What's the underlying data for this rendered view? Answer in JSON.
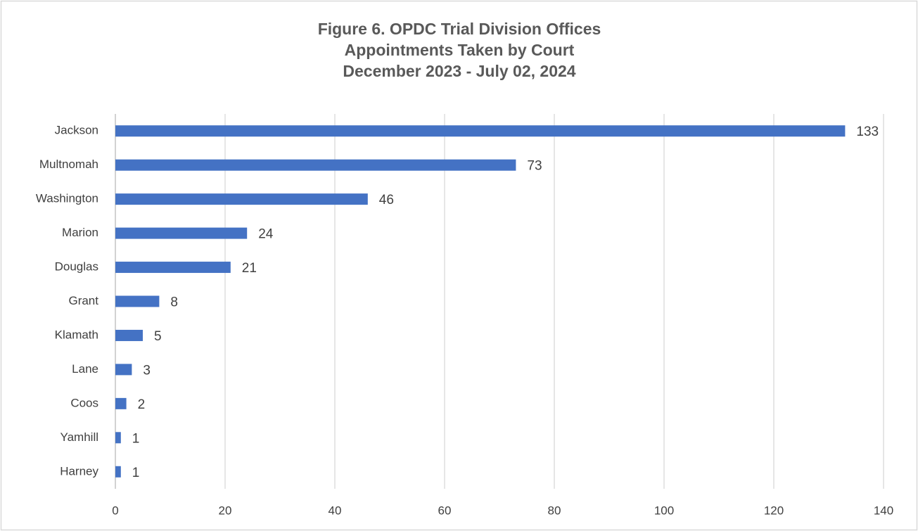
{
  "chart_data": {
    "type": "hbar",
    "title": [
      "Figure 6. OPDC Trial Division Offices",
      "Appointments Taken by Court",
      "December 2023 - July 02, 2024"
    ],
    "categories": [
      "Jackson",
      "Multnomah",
      "Washington",
      "Marion",
      "Douglas",
      "Grant",
      "Klamath",
      "Lane",
      "Coos",
      "Yamhill",
      "Harney"
    ],
    "values": [
      133,
      73,
      46,
      24,
      21,
      8,
      5,
      3,
      2,
      1,
      1
    ],
    "color": "#4472c4",
    "xlim": [
      0,
      140
    ],
    "xticks": [
      0,
      20,
      40,
      60,
      80,
      100,
      120,
      140
    ],
    "grid": true
  }
}
